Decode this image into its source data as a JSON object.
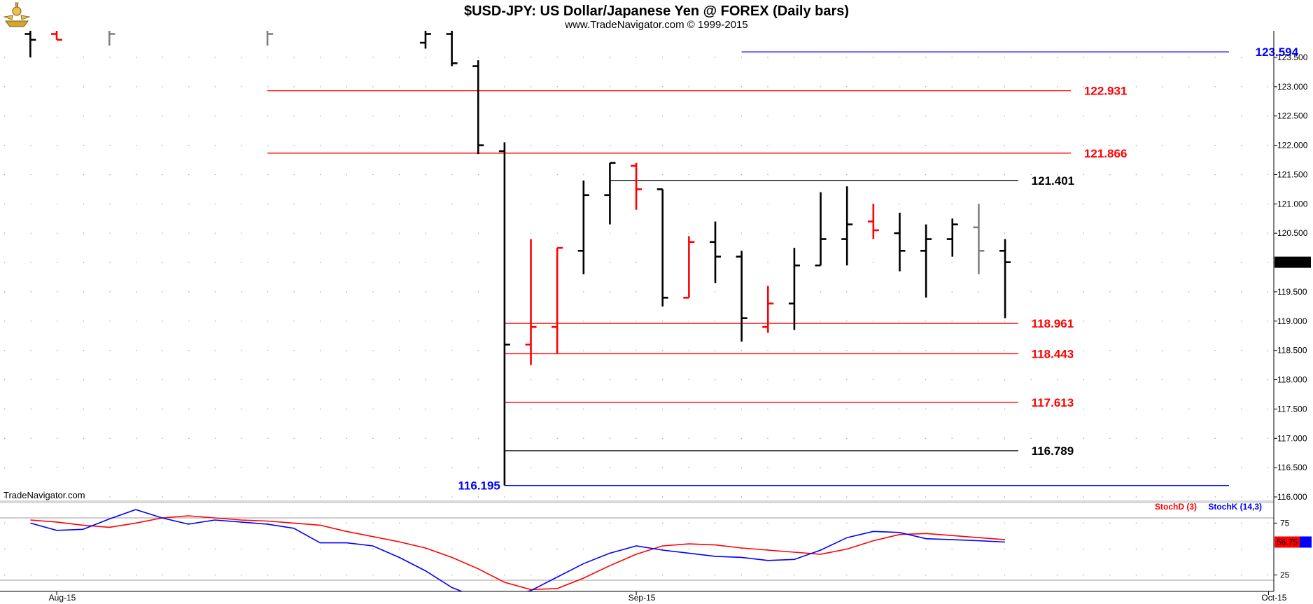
{
  "title": "$USD-JPY:  US Dollar/Japanese Yen @ FOREX  (Daily bars)",
  "subtitle": "www.TradeNavigator.com © 1999-2015",
  "watermark": "TradeNavigator.com",
  "colors": {
    "up_bar": "#000000",
    "down_bar": "#ff0000",
    "neutral_bar": "#808080",
    "support_resistance": "#ff0000",
    "key_level": "#000000",
    "range_extreme": "#0000ff",
    "stoch_d": "#ff0000",
    "stoch_k": "#0000ff"
  },
  "chart_data": [
    {
      "type": "ohlc",
      "title": "$USD-JPY:  US Dollar/Japanese Yen @ FOREX  (Daily bars)",
      "ylim": [
        116.0,
        123.75
      ],
      "y_ticks": [
        "116.000",
        "116.500",
        "117.000",
        "117.500",
        "118.000",
        "118.500",
        "119.000",
        "119.500",
        "120.000",
        "120.500",
        "121.000",
        "121.500",
        "122.000",
        "122.500",
        "123.000",
        "123.500"
      ],
      "x_ticks": [
        {
          "label": "Aug-15",
          "day": 0
        },
        {
          "label": "Sep-15",
          "day": 22
        },
        {
          "label": "Oct-15",
          "day": 46
        }
      ],
      "last_price": "120.005",
      "bars": [
        {
          "day": -1,
          "open": 123.9,
          "high": 124.1,
          "low": 123.5,
          "close": 123.8,
          "color": "black"
        },
        {
          "day": 0,
          "open": 123.9,
          "high": 124.1,
          "low": 123.8,
          "close": 123.8,
          "color": "red"
        },
        {
          "day": 2,
          "open": 124.0,
          "high": 124.1,
          "low": 123.7,
          "close": 123.9,
          "color": "gray"
        },
        {
          "day": 8,
          "open": 124.0,
          "high": 124.1,
          "low": 123.7,
          "close": 123.9,
          "color": "gray"
        },
        {
          "day": 14,
          "open": 123.75,
          "high": 124.0,
          "low": 123.65,
          "close": 123.9,
          "color": "black"
        },
        {
          "day": 15,
          "open": 123.9,
          "high": 124.0,
          "low": 123.35,
          "close": 123.4,
          "color": "black"
        },
        {
          "day": 16,
          "open": 123.35,
          "high": 123.45,
          "low": 121.85,
          "close": 122.0,
          "color": "black"
        },
        {
          "day": 17,
          "open": 121.9,
          "high": 122.05,
          "low": 116.195,
          "close": 118.6,
          "color": "black"
        },
        {
          "day": 18,
          "open": 118.6,
          "high": 120.4,
          "low": 118.25,
          "close": 118.9,
          "color": "red"
        },
        {
          "day": 19,
          "open": 118.9,
          "high": 120.25,
          "low": 118.45,
          "close": 120.25,
          "color": "red"
        },
        {
          "day": 20,
          "open": 120.2,
          "high": 121.4,
          "low": 119.8,
          "close": 121.15,
          "color": "black"
        },
        {
          "day": 21,
          "open": 121.15,
          "high": 121.7,
          "low": 120.65,
          "close": 121.7,
          "color": "black"
        },
        {
          "day": 22,
          "open": 121.65,
          "high": 121.7,
          "low": 120.9,
          "close": 121.25,
          "color": "red"
        },
        {
          "day": 23,
          "open": 121.25,
          "high": 121.25,
          "low": 119.25,
          "close": 119.4,
          "color": "black"
        },
        {
          "day": 24,
          "open": 119.4,
          "high": 120.45,
          "low": 119.4,
          "close": 120.35,
          "color": "red"
        },
        {
          "day": 25,
          "open": 120.35,
          "high": 120.7,
          "low": 119.65,
          "close": 120.1,
          "color": "black"
        },
        {
          "day": 26,
          "open": 120.1,
          "high": 120.2,
          "low": 118.65,
          "close": 119.05,
          "color": "black"
        },
        {
          "day": 27,
          "open": 118.9,
          "high": 119.6,
          "low": 118.8,
          "close": 119.3,
          "color": "red"
        },
        {
          "day": 28,
          "open": 119.3,
          "high": 120.25,
          "low": 118.85,
          "close": 119.95,
          "color": "black"
        },
        {
          "day": 29,
          "open": 119.95,
          "high": 121.2,
          "low": 119.95,
          "close": 120.4,
          "color": "black"
        },
        {
          "day": 30,
          "open": 120.4,
          "high": 121.3,
          "low": 119.95,
          "close": 120.65,
          "color": "black"
        },
        {
          "day": 31,
          "open": 120.7,
          "high": 121.0,
          "low": 120.4,
          "close": 120.55,
          "color": "red"
        },
        {
          "day": 32,
          "open": 120.5,
          "high": 120.85,
          "low": 119.85,
          "close": 120.2,
          "color": "black"
        },
        {
          "day": 33,
          "open": 120.2,
          "high": 120.65,
          "low": 119.4,
          "close": 120.4,
          "color": "black"
        },
        {
          "day": 34,
          "open": 120.4,
          "high": 120.75,
          "low": 120.1,
          "close": 120.65,
          "color": "black"
        },
        {
          "day": 35,
          "open": 120.6,
          "high": 121.0,
          "low": 119.8,
          "close": 120.2,
          "color": "gray"
        },
        {
          "day": 36,
          "open": 120.2,
          "high": 120.4,
          "low": 119.05,
          "close": 120.005,
          "color": "black"
        }
      ],
      "levels": [
        {
          "value": 123.594,
          "label": "123.594",
          "kind": "range_extreme",
          "from_day": 26,
          "to_day": 44.5,
          "label_day": 45.5
        },
        {
          "value": 122.931,
          "label": "122.931",
          "kind": "support_resistance",
          "from_day": 8,
          "to_day": 38.5,
          "label_day": 39
        },
        {
          "value": 121.866,
          "label": "121.866",
          "kind": "support_resistance",
          "from_day": 8,
          "to_day": 38.5,
          "label_day": 39
        },
        {
          "value": 121.401,
          "label": "121.401",
          "kind": "key_level",
          "from_day": 21,
          "to_day": 36.5,
          "label_day": 37
        },
        {
          "value": 118.961,
          "label": "118.961",
          "kind": "support_resistance",
          "from_day": 17,
          "to_day": 36.5,
          "label_day": 37
        },
        {
          "value": 118.443,
          "label": "118.443",
          "kind": "support_resistance",
          "from_day": 17,
          "to_day": 36.5,
          "label_day": 37
        },
        {
          "value": 117.613,
          "label": "117.613",
          "kind": "support_resistance",
          "from_day": 17,
          "to_day": 36.5,
          "label_day": 37
        },
        {
          "value": 116.789,
          "label": "116.789",
          "kind": "key_level",
          "from_day": 17,
          "to_day": 36.5,
          "label_day": 37
        },
        {
          "value": 116.195,
          "label": "116.195",
          "kind": "range_extreme",
          "from_day": 17,
          "to_day": 44.5,
          "label_day": 17
        }
      ]
    },
    {
      "type": "line",
      "ylim": [
        0,
        100
      ],
      "y_ticks": [
        "25",
        "75"
      ],
      "guides": [
        20,
        80
      ],
      "last_value": "56.75",
      "legend": [
        "StochD (3)",
        "StochK (14,3)"
      ],
      "series": [
        {
          "name": "StochD (3)",
          "color": "#ff0000",
          "x": [
            -1,
            0,
            1,
            2,
            3,
            4,
            5,
            6,
            7,
            8,
            9,
            10,
            11,
            12,
            13,
            14,
            15,
            16,
            17,
            18,
            19,
            20,
            21,
            22,
            23,
            24,
            25,
            26,
            27,
            28,
            29,
            30,
            31,
            32,
            33,
            34,
            35,
            36
          ],
          "y": [
            78,
            76,
            73,
            71,
            75,
            80,
            82,
            80,
            78,
            77,
            75,
            73,
            67,
            62,
            57,
            51,
            42,
            31,
            18,
            11,
            12,
            22,
            34,
            45,
            53,
            55,
            54,
            51,
            49,
            47,
            45,
            50,
            58,
            64,
            65,
            63,
            61,
            59
          ]
        },
        {
          "name": "StochK (14,3)",
          "color": "#0000ff",
          "x": [
            -1,
            0,
            1,
            2,
            3,
            4,
            5,
            6,
            7,
            8,
            9,
            10,
            11,
            12,
            13,
            14,
            15,
            16,
            17,
            18,
            19,
            20,
            21,
            22,
            23,
            24,
            25,
            26,
            27,
            28,
            29,
            30,
            31,
            32,
            33,
            34,
            35,
            36
          ],
          "y": [
            75,
            68,
            69,
            79,
            88,
            80,
            74,
            78,
            76,
            74,
            70,
            56,
            56,
            53,
            42,
            29,
            13,
            3,
            3,
            10,
            23,
            36,
            46,
            53,
            49,
            46,
            43,
            42,
            39,
            40,
            49,
            61,
            67,
            66,
            60,
            59,
            58,
            56.75
          ]
        }
      ]
    }
  ]
}
